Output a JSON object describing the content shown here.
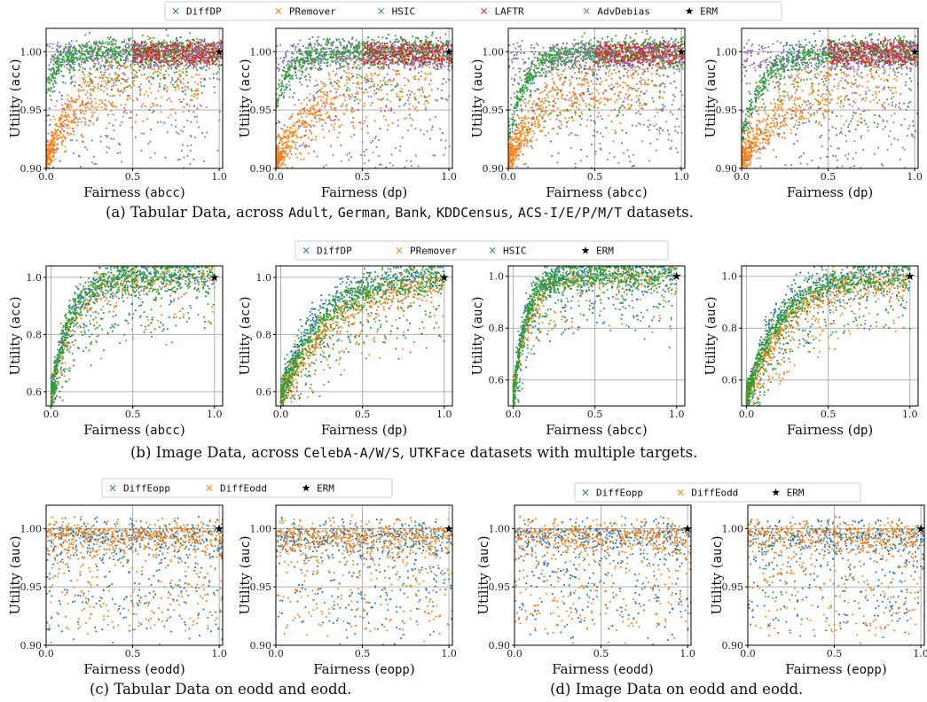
{
  "figure": {
    "captions": {
      "a": {
        "pre": "(a) Tabular Data, across ",
        "mid": ", ",
        "ds1": "Adult",
        "ds2": "German",
        "ds3": "Bank",
        "ds4": "KDDCensus",
        "ds5": "ACS-I/E/P/M/T",
        "post": " datasets."
      },
      "b": {
        "pre": "(b) Image Data, across ",
        "ds1": "CelebA-A/W/S",
        "ds2": "UTKFace",
        "post": " datasets with multiple targets."
      },
      "c": {
        "text": "(c) Tabular Data on eodd and eodd."
      },
      "d": {
        "text": "(d) Image Data on eodd and eodd."
      }
    },
    "legends": {
      "a": [
        {
          "name": "DiffDP",
          "color": "#1f77b4",
          "marker": "x"
        },
        {
          "name": "PRemover",
          "color": "#ff7f0e",
          "marker": "x"
        },
        {
          "name": "HSIC",
          "color": "#2ca02c",
          "marker": "x"
        },
        {
          "name": "LAFTR",
          "color": "#d62728",
          "marker": "x"
        },
        {
          "name": "AdvDebias",
          "color": "#9467bd",
          "marker": "x"
        },
        {
          "name": "ERM",
          "color": "#000000",
          "marker": "star"
        }
      ],
      "b": [
        {
          "name": "DiffDP",
          "color": "#1f77b4",
          "marker": "x"
        },
        {
          "name": "PRemover",
          "color": "#ff7f0e",
          "marker": "x"
        },
        {
          "name": "HSIC",
          "color": "#2ca02c",
          "marker": "x"
        },
        {
          "name": "ERM",
          "color": "#000000",
          "marker": "star"
        }
      ],
      "c": [
        {
          "name": "DiffEopp",
          "color": "#1f77b4",
          "marker": "x"
        },
        {
          "name": "DiffEodd",
          "color": "#ff7f0e",
          "marker": "x"
        },
        {
          "name": "ERM",
          "color": "#000000",
          "marker": "star"
        }
      ],
      "d": [
        {
          "name": "DiffEopp",
          "color": "#1f77b4",
          "marker": "x"
        },
        {
          "name": "DiffEodd",
          "color": "#ff7f0e",
          "marker": "x"
        },
        {
          "name": "ERM",
          "color": "#000000",
          "marker": "star"
        }
      ]
    }
  },
  "chart_data": [
    {
      "id": "a1",
      "type": "scatter",
      "xlabel_pre": "Fairness (",
      "xlabel_code": "abcc",
      "xlabel_post": ")",
      "ylabel_pre": "Utility (",
      "ylabel_code": "acc",
      "ylabel_post": ")",
      "xlim": [
        0,
        1.02
      ],
      "ylim": [
        0.9,
        1.02
      ],
      "xticks": [
        "0.0",
        "0.5",
        "1.0"
      ],
      "yticks": [
        "0.90",
        "0.95",
        "1.00"
      ],
      "xtickvals": [
        0,
        0.5,
        1.0
      ],
      "ytickvals": [
        0.9,
        0.95,
        1.0
      ],
      "erm": [
        1.0,
        1.0
      ],
      "series": [
        {
          "name": "DiffDP",
          "shape": "sat",
          "n": 160,
          "k": 20,
          "floor": 0.93
        },
        {
          "name": "PRemover",
          "shape": "low",
          "n": 700,
          "k": 6,
          "floor": 0.9
        },
        {
          "name": "HSIC",
          "shape": "sat",
          "n": 900,
          "k": 20,
          "floor": 0.965
        },
        {
          "name": "LAFTR",
          "shape": "top",
          "n": 450,
          "k": 4,
          "floor": 0.99
        },
        {
          "name": "AdvDebias",
          "shape": "scatter",
          "n": 500,
          "k": 5,
          "floor": 0.9
        }
      ]
    },
    {
      "id": "a2",
      "type": "scatter",
      "xlabel_pre": "Fairness (",
      "xlabel_code": "dp",
      "xlabel_post": ")",
      "ylabel_pre": "Utility (",
      "ylabel_code": "acc",
      "ylabel_post": ")",
      "xlim": [
        0,
        1.02
      ],
      "ylim": [
        0.9,
        1.02
      ],
      "xticks": [
        "0.0",
        "0.5",
        "1.0"
      ],
      "yticks": [
        "0.90",
        "0.95",
        "1.00"
      ],
      "xtickvals": [
        0,
        0.5,
        1.0
      ],
      "ytickvals": [
        0.9,
        0.95,
        1.0
      ],
      "erm": [
        1.0,
        1.0
      ],
      "series": [
        {
          "name": "DiffDP",
          "shape": "sat",
          "n": 160,
          "k": 15,
          "floor": 0.93
        },
        {
          "name": "PRemover",
          "shape": "low",
          "n": 650,
          "k": 4,
          "floor": 0.9
        },
        {
          "name": "HSIC",
          "shape": "sat",
          "n": 850,
          "k": 12,
          "floor": 0.955
        },
        {
          "name": "LAFTR",
          "shape": "top",
          "n": 400,
          "k": 4,
          "floor": 0.99
        },
        {
          "name": "AdvDebias",
          "shape": "scatter",
          "n": 500,
          "k": 4,
          "floor": 0.9
        }
      ]
    },
    {
      "id": "a3",
      "type": "scatter",
      "xlabel_pre": "Fairness (",
      "xlabel_code": "abcc",
      "xlabel_post": ")",
      "ylabel_pre": "Utility (",
      "ylabel_code": "auc",
      "ylabel_post": ")",
      "xlim": [
        0,
        1.02
      ],
      "ylim": [
        0.9,
        1.02
      ],
      "xticks": [
        "0.0",
        "0.5",
        "1.0"
      ],
      "yticks": [
        "0.90",
        "0.95",
        "1.00"
      ],
      "xtickvals": [
        0,
        0.5,
        1.0
      ],
      "ytickvals": [
        0.9,
        0.95,
        1.0
      ],
      "erm": [
        1.0,
        1.0
      ],
      "series": [
        {
          "name": "DiffDP",
          "shape": "sat",
          "n": 160,
          "k": 10,
          "floor": 0.92
        },
        {
          "name": "PRemover",
          "shape": "low",
          "n": 700,
          "k": 5,
          "floor": 0.9
        },
        {
          "name": "HSIC",
          "shape": "sat",
          "n": 900,
          "k": 10,
          "floor": 0.93
        },
        {
          "name": "LAFTR",
          "shape": "top",
          "n": 400,
          "k": 4,
          "floor": 0.985
        },
        {
          "name": "AdvDebias",
          "shape": "scatter",
          "n": 500,
          "k": 5,
          "floor": 0.9
        }
      ]
    },
    {
      "id": "a4",
      "type": "scatter",
      "xlabel_pre": "Fairness (",
      "xlabel_code": "dp",
      "xlabel_post": ")",
      "ylabel_pre": "Utility (",
      "ylabel_code": "auc",
      "ylabel_post": ")",
      "xlim": [
        0,
        1.02
      ],
      "ylim": [
        0.9,
        1.02
      ],
      "xticks": [
        "0.0",
        "0.5",
        "1.0"
      ],
      "yticks": [
        "0.90",
        "0.95",
        "1.00"
      ],
      "xtickvals": [
        0,
        0.5,
        1.0
      ],
      "ytickvals": [
        0.9,
        0.95,
        1.0
      ],
      "erm": [
        1.0,
        1.0
      ],
      "series": [
        {
          "name": "DiffDP",
          "shape": "sat",
          "n": 160,
          "k": 10,
          "floor": 0.92
        },
        {
          "name": "PRemover",
          "shape": "low",
          "n": 650,
          "k": 4,
          "floor": 0.9
        },
        {
          "name": "HSIC",
          "shape": "sat",
          "n": 850,
          "k": 8,
          "floor": 0.925
        },
        {
          "name": "LAFTR",
          "shape": "top",
          "n": 420,
          "k": 4,
          "floor": 0.985
        },
        {
          "name": "AdvDebias",
          "shape": "scatter",
          "n": 500,
          "k": 4,
          "floor": 0.9
        }
      ]
    },
    {
      "id": "b1",
      "type": "scatter",
      "xlabel_pre": "Fairness (",
      "xlabel_code": "abcc",
      "xlabel_post": ")",
      "ylabel_pre": "Utility (",
      "ylabel_code": "acc",
      "ylabel_post": ")",
      "xlim": [
        -0.03,
        1.05
      ],
      "ylim": [
        0.55,
        1.04
      ],
      "xticks": [
        "0.0",
        "0.5",
        "1.0"
      ],
      "yticks": [
        "0.6",
        "0.8",
        "1.0"
      ],
      "xtickvals": [
        0,
        0.5,
        1.0
      ],
      "ytickvals": [
        0.6,
        0.8,
        1.0
      ],
      "erm": [
        1.0,
        1.0
      ],
      "series": [
        {
          "name": "DiffDP",
          "shape": "curve",
          "n": 500,
          "k": 9,
          "floor": 0.58
        },
        {
          "name": "PRemover",
          "shape": "curve",
          "n": 300,
          "k": 7,
          "floor": 0.58
        },
        {
          "name": "HSIC",
          "shape": "curve",
          "n": 800,
          "k": 9,
          "floor": 0.58
        }
      ]
    },
    {
      "id": "b2",
      "type": "scatter",
      "xlabel_pre": "Fairness (",
      "xlabel_code": "dp",
      "xlabel_post": ")",
      "ylabel_pre": "Utility (",
      "ylabel_code": "acc",
      "ylabel_post": ")",
      "xlim": [
        -0.03,
        1.05
      ],
      "ylim": [
        0.55,
        1.04
      ],
      "xticks": [
        "0.0",
        "0.5",
        "1.0"
      ],
      "yticks": [
        "0.6",
        "0.8",
        "1.0"
      ],
      "xtickvals": [
        0,
        0.5,
        1.0
      ],
      "ytickvals": [
        0.6,
        0.8,
        1.0
      ],
      "erm": [
        1.0,
        1.0
      ],
      "series": [
        {
          "name": "DiffDP",
          "shape": "curve",
          "n": 500,
          "k": 5,
          "floor": 0.58
        },
        {
          "name": "PRemover",
          "shape": "curve",
          "n": 600,
          "k": 3,
          "floor": 0.58
        },
        {
          "name": "HSIC",
          "shape": "curve",
          "n": 800,
          "k": 4,
          "floor": 0.58
        }
      ]
    },
    {
      "id": "b3",
      "type": "scatter",
      "xlabel_pre": "Fairness (",
      "xlabel_code": "abcc",
      "xlabel_post": ")",
      "ylabel_pre": "Utility (",
      "ylabel_code": "auc",
      "ylabel_post": ")",
      "xlim": [
        -0.03,
        1.05
      ],
      "ylim": [
        0.5,
        1.04
      ],
      "xticks": [
        "0.0",
        "0.5",
        "1.0"
      ],
      "yticks": [
        "0.6",
        "0.8",
        "1.0"
      ],
      "xtickvals": [
        0,
        0.5,
        1.0
      ],
      "ytickvals": [
        0.6,
        0.8,
        1.0
      ],
      "erm": [
        1.0,
        1.0
      ],
      "series": [
        {
          "name": "DiffDP",
          "shape": "curve",
          "n": 500,
          "k": 14,
          "floor": 0.52
        },
        {
          "name": "PRemover",
          "shape": "curve",
          "n": 300,
          "k": 10,
          "floor": 0.55
        },
        {
          "name": "HSIC",
          "shape": "curve",
          "n": 900,
          "k": 14,
          "floor": 0.52
        }
      ]
    },
    {
      "id": "b4",
      "type": "scatter",
      "xlabel_pre": "Fairness (",
      "xlabel_code": "dp",
      "xlabel_post": ")",
      "ylabel_pre": "Utility (",
      "ylabel_code": "auc",
      "ylabel_post": ")",
      "xlim": [
        -0.03,
        1.05
      ],
      "ylim": [
        0.5,
        1.04
      ],
      "xticks": [
        "0.0",
        "0.5",
        "1.0"
      ],
      "yticks": [
        "0.6",
        "0.8",
        "1.0"
      ],
      "xtickvals": [
        0,
        0.5,
        1.0
      ],
      "ytickvals": [
        0.6,
        0.8,
        1.0
      ],
      "erm": [
        1.0,
        1.0
      ],
      "series": [
        {
          "name": "DiffDP",
          "shape": "curve",
          "n": 500,
          "k": 6,
          "floor": 0.52
        },
        {
          "name": "PRemover",
          "shape": "curve",
          "n": 600,
          "k": 4,
          "floor": 0.52
        },
        {
          "name": "HSIC",
          "shape": "curve",
          "n": 800,
          "k": 5,
          "floor": 0.52
        }
      ]
    },
    {
      "id": "c1",
      "type": "scatter",
      "xlabel_pre": "Fairness (",
      "xlabel_code": "eodd",
      "xlabel_post": ")",
      "ylabel_pre": "Utility (",
      "ylabel_code": "auc",
      "ylabel_post": ")",
      "xlim": [
        0,
        1.02
      ],
      "ylim": [
        0.9,
        1.02
      ],
      "xticks": [
        "0.0",
        "0.5",
        "1.0"
      ],
      "yticks": [
        "0.90",
        "0.95",
        "1.00"
      ],
      "xtickvals": [
        0,
        0.5,
        1.0
      ],
      "ytickvals": [
        0.9,
        0.95,
        1.0
      ],
      "erm": [
        1.0,
        1.0
      ],
      "series": [
        {
          "name": "DiffEopp",
          "shape": "band",
          "n": 550,
          "k": 6,
          "floor": 0.9
        },
        {
          "name": "DiffEodd",
          "shape": "band",
          "n": 700,
          "k": 5,
          "floor": 0.9
        }
      ]
    },
    {
      "id": "c2",
      "type": "scatter",
      "xlabel_pre": "Fairness (",
      "xlabel_code": "eopp",
      "xlabel_post": ")",
      "ylabel_pre": "Utility (",
      "ylabel_code": "auc",
      "ylabel_post": ")",
      "xlim": [
        0,
        1.02
      ],
      "ylim": [
        0.9,
        1.02
      ],
      "xticks": [
        "0.0",
        "0.5",
        "1.0"
      ],
      "yticks": [
        "0.90",
        "0.95",
        "1.00"
      ],
      "xtickvals": [
        0,
        0.5,
        1.0
      ],
      "ytickvals": [
        0.9,
        0.95,
        1.0
      ],
      "erm": [
        1.0,
        1.0
      ],
      "series": [
        {
          "name": "DiffEopp",
          "shape": "band",
          "n": 550,
          "k": 6,
          "floor": 0.9
        },
        {
          "name": "DiffEodd",
          "shape": "band",
          "n": 700,
          "k": 5,
          "floor": 0.9
        }
      ]
    },
    {
      "id": "d1",
      "type": "scatter",
      "xlabel_pre": "Fairness (",
      "xlabel_code": "eodd",
      "xlabel_post": ")",
      "ylabel_pre": "Utility (",
      "ylabel_code": "auc",
      "ylabel_post": ")",
      "xlim": [
        0,
        1.02
      ],
      "ylim": [
        0.9,
        1.02
      ],
      "xticks": [
        "0.0",
        "0.5",
        "1.0"
      ],
      "yticks": [
        "0.90",
        "0.95",
        "1.00"
      ],
      "xtickvals": [
        0,
        0.5,
        1.0
      ],
      "ytickvals": [
        0.9,
        0.95,
        1.0
      ],
      "erm": [
        1.0,
        1.0
      ],
      "series": [
        {
          "name": "DiffEopp",
          "shape": "band",
          "n": 550,
          "k": 6,
          "floor": 0.9
        },
        {
          "name": "DiffEodd",
          "shape": "band",
          "n": 650,
          "k": 5,
          "floor": 0.9
        }
      ]
    },
    {
      "id": "d2",
      "type": "scatter",
      "xlabel_pre": "Fairness (",
      "xlabel_code": "eopp",
      "xlabel_post": ")",
      "ylabel_pre": "Utility (",
      "ylabel_code": "auc",
      "ylabel_post": ")",
      "xlim": [
        0,
        1.02
      ],
      "ylim": [
        0.9,
        1.02
      ],
      "xticks": [
        "0.0",
        "0.5",
        "1.0"
      ],
      "yticks": [
        "0.90",
        "0.95",
        "1.00"
      ],
      "xtickvals": [
        0,
        0.5,
        1.0
      ],
      "ytickvals": [
        0.9,
        0.95,
        1.0
      ],
      "erm": [
        1.0,
        1.0
      ],
      "series": [
        {
          "name": "DiffEopp",
          "shape": "band",
          "n": 550,
          "k": 6,
          "floor": 0.9
        },
        {
          "name": "DiffEodd",
          "shape": "band",
          "n": 650,
          "k": 5,
          "floor": 0.9
        }
      ]
    }
  ]
}
